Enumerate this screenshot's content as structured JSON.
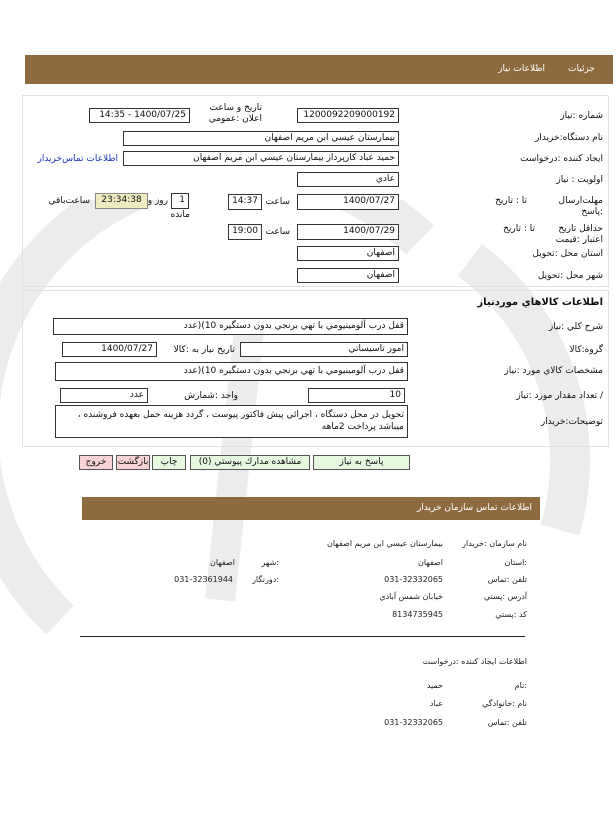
{
  "header": {
    "tabs": [
      "جزئيات",
      "اطلاعات نياز"
    ]
  },
  "details": {
    "need_number_label": "شماره :نياز",
    "need_number": "1200092209000192",
    "announce_label": "تاريخ و ساعت اعلان :عمومي",
    "announce_value": "1400/07/25 - 14:35",
    "buyer_org_label": "نام دستگاه:خريدار",
    "buyer_org": "بيمارستان عيسي ابن مريم اصفهان",
    "creator_label": "ايجاد كننده :درخواست",
    "creator": "حميد عباد كارپرداز بيمارستان عيسي ابن مريم اصفهان",
    "contact_link": "اطلاعات تماس‌خريدار",
    "priority_label": "اولويت : نياز",
    "priority": "عادي",
    "deadline_label": "مهلت‌ارسال :پاسخ",
    "to_date_label": "تا : تاريخ",
    "deadline_date": "1400/07/27",
    "time_label": "ساعت",
    "deadline_time": "14:37",
    "days": "1",
    "days_label": "روز و",
    "remaining_label_1": "ساعت‌باقي",
    "remaining_label_2": "مانده",
    "timer": "23:34:38",
    "validity_label": "حداقل تاريخ اعتبار :قيمت",
    "validity_date": "1400/07/29",
    "validity_time": "19:00",
    "province_label": "استان محل :تحويل",
    "province": "اصفهان",
    "city_label": "شهر محل :تحويل",
    "city": "اصفهان"
  },
  "goods": {
    "title": "اطلاعات كالاهاي موردنياز",
    "summary_label": "شرح كلي :نياز",
    "summary": "قفل درب آلومينيومي با تهي برنجي بدون دستگيره 10)(عدد",
    "group_label": "گروه:كالا",
    "group": "امور تاسيساتي",
    "need_date_label": "تاريخ نياز به :كالا",
    "need_date": "1400/07/27",
    "specs_label": "مشخصات كالاي مورد :نياز",
    "specs": "قفل درب آلومينيومي با تهي برنجي بدون دستگيره 10)(عدد",
    "qty_label": "/ تعداد مقدار مورد :نياز",
    "qty": "10",
    "unit_label": "واحد :شمارش",
    "unit": "عدد",
    "desc_label": "توضيحات:خريدار",
    "desc": "تحويل در محل دستگاه ، اجرائي پيش فاكتور پيوست ، گردد هزينه حمل بعهده فروشنده ، ميباشد پرداخت 2ماهه"
  },
  "buttons": {
    "reply": "پاسخ به نياز",
    "attachments": "مشاهده مدارك پيوستي (0)",
    "print": "چاپ",
    "back": "بازگشت",
    "exit": "خروج"
  },
  "contact": {
    "title": "اطلاعات تماس سازمان خريدار",
    "org_label": "نام سازمان :خريدار",
    "org": "بيمارستان عيسي ابن مريم اصفهان",
    "province_label": ":استان",
    "province": "اصفهان",
    "city_label": ":شهر",
    "city": "اصفهان",
    "phone_label": "تلفن :تماس",
    "phone": "031-32332065",
    "fax_label": ":دورنگار",
    "fax": "031-32361944",
    "address_label": "آدرس :پستي",
    "address": "خيابان شمس آبادي",
    "postal_label": "كد :پستي",
    "postal": "8134735945"
  },
  "creator_info": {
    "title": "اطلاعات ايجاد كننده :درخواست",
    "name_label": ":نام",
    "name": "حميد",
    "family_label": "نام :خانوادگي",
    "family": "عباد",
    "phone_label": "تلفن :تماس",
    "phone": "031-32332065"
  },
  "colors": {
    "bar": "#8d6b3e",
    "green_button": "#e6f9e0",
    "red_button": "#f7d3d6",
    "timer": "#efebc0",
    "link": "#1a35b5"
  }
}
